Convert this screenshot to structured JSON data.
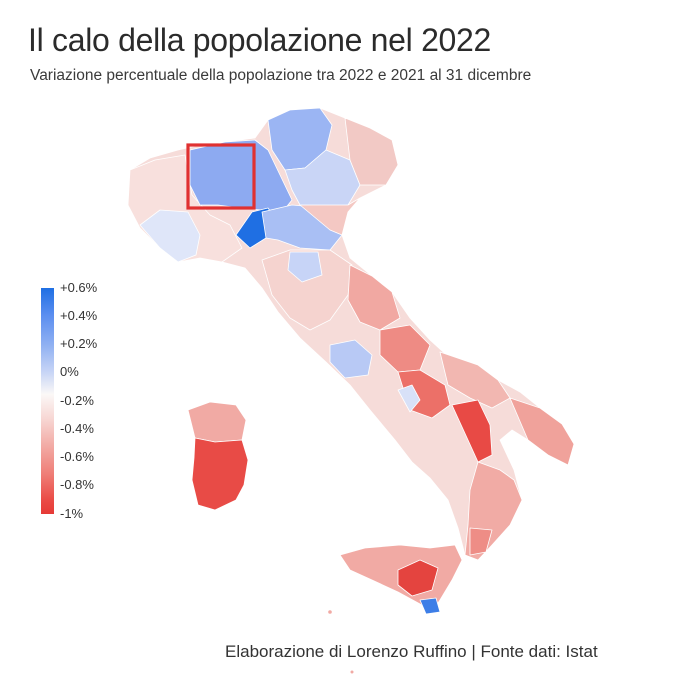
{
  "title": "Il calo della popolazione nel 2022",
  "subtitle": "Variazione percentuale della popolazione tra 2022 e 2021 al 31 dicembre",
  "legend": {
    "labels": [
      "+0.6%",
      "+0.4%",
      "+0.2%",
      "0%",
      "-0.2%",
      "-0.4%",
      "-0.6%",
      "-0.8%",
      "-1%"
    ],
    "colors": {
      "max_positive": "#1f6fe3",
      "zero": "#fbf8f7",
      "max_negative": "#e63a36"
    }
  },
  "highlight": {
    "color": "#e03131"
  },
  "footer": "Elaborazione di Lorenzo Ruffino | Fonte dati: Istat"
}
